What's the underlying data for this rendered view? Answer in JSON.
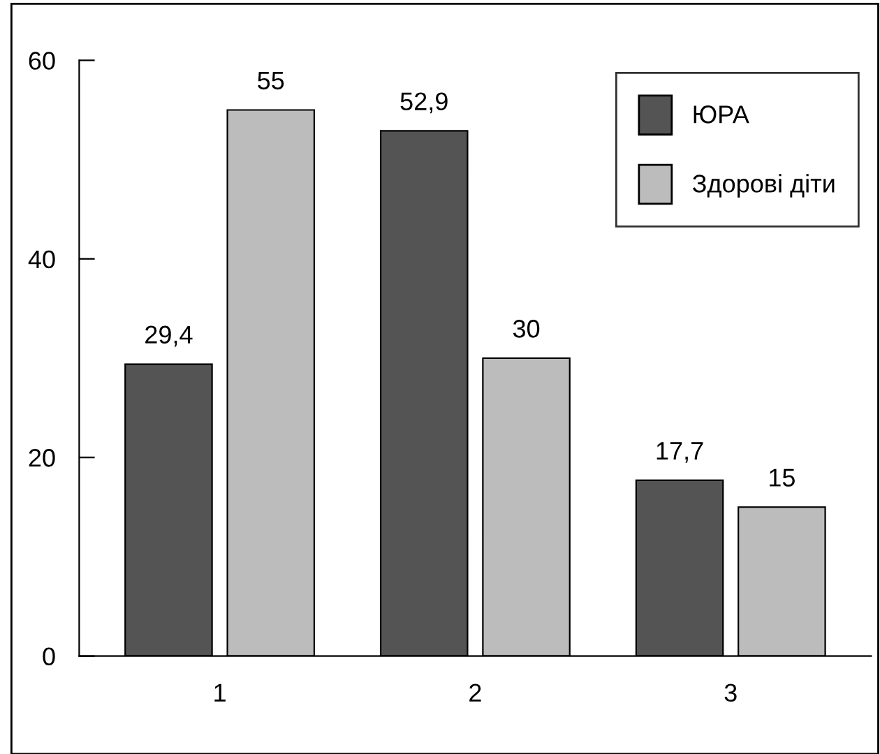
{
  "chart_data": {
    "type": "bar",
    "categories": [
      "1",
      "2",
      "3"
    ],
    "series": [
      {
        "name": "ЮРА",
        "color": "#545454",
        "values": [
          29.4,
          52.9,
          17.7
        ],
        "value_labels": [
          "29,4",
          "52,9",
          "17,7"
        ]
      },
      {
        "name": "Здорові діти",
        "color": "#bcbcbd",
        "values": [
          55,
          30,
          15
        ],
        "value_labels": [
          "55",
          "30",
          "15"
        ]
      }
    ],
    "ylim": [
      0,
      60
    ],
    "yticks": [
      0,
      20,
      40,
      60
    ],
    "grid": false,
    "legend": "top right"
  }
}
